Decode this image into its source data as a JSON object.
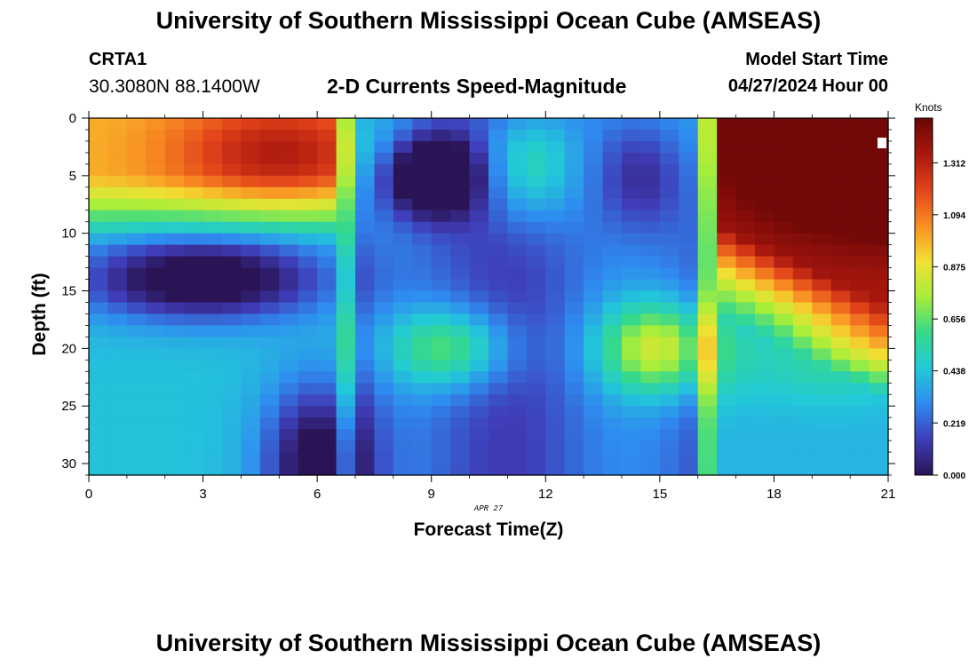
{
  "header": {
    "title": "University of Southern Mississippi Ocean Cube (AMSEAS)",
    "station": "CRTA1",
    "coordinates": "30.3080N  88.1400W",
    "subtitle": "2-D Currents Speed-Magnitude",
    "model_start_label": "Model Start Time",
    "model_start_value": "04/27/2024 Hour 00"
  },
  "footer": {
    "title": "University of Southern Mississippi Ocean Cube (AMSEAS)"
  },
  "chart_data": {
    "type": "heatmap",
    "title": "2-D Currents Speed-Magnitude",
    "xlabel": "Forecast Time(Z)",
    "ylabel": "Depth (ft)",
    "date_annotation": "APR 27",
    "x_ticks": [
      0,
      3,
      6,
      9,
      12,
      15,
      18,
      21
    ],
    "y_ticks": [
      0,
      5,
      10,
      15,
      20,
      25,
      30
    ],
    "xlim": [
      0,
      21
    ],
    "ylim": [
      31,
      0
    ],
    "colorbar": {
      "label": "Knots",
      "ticks": [
        "0.000",
        "0.219",
        "0.438",
        "0.656",
        "0.875",
        "1.094",
        "1.312"
      ],
      "range": [
        0,
        1.5
      ],
      "colors": [
        "#2a1455",
        "#3f3db8",
        "#2f8bf0",
        "#22c9d8",
        "#36d98a",
        "#a8ee3a",
        "#f2e032",
        "#f98e22",
        "#e2431a",
        "#a8170e",
        "#6a0606"
      ]
    },
    "features": [
      {
        "x": 3,
        "depth": 14,
        "value": 0.05,
        "kind": "minimum"
      },
      {
        "x": 6,
        "depth": 30,
        "value": 0.0,
        "kind": "minimum"
      },
      {
        "x": 9,
        "depth": 5,
        "value": 0.0,
        "kind": "minimum"
      },
      {
        "x": 9.5,
        "depth": 20,
        "value": 0.66,
        "kind": "maximum"
      },
      {
        "x": 15,
        "depth": 20,
        "value": 0.84,
        "kind": "maximum"
      },
      {
        "x": 21,
        "depth": 1,
        "value": 1.45,
        "kind": "maximum"
      }
    ]
  }
}
